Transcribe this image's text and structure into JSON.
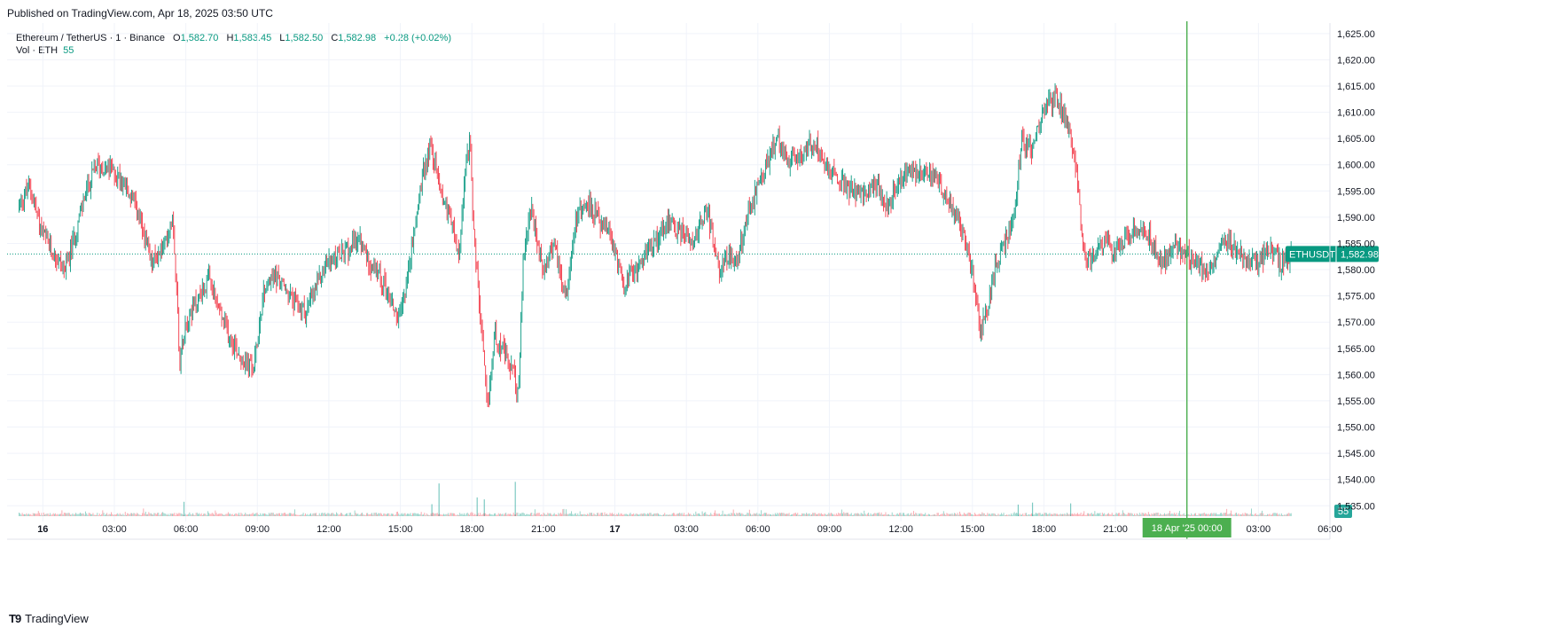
{
  "header": {
    "published": "Published on TradingView.com, Apr 18, 2025 03:50 UTC"
  },
  "legend": {
    "symbol": "Ethereum / TetherUS · 1 · Binance",
    "open_label": "O",
    "open": "1,582.70",
    "high_label": "H",
    "high": "1,583.45",
    "low_label": "L",
    "low": "1,582.50",
    "close_label": "C",
    "close": "1,582.98",
    "change": "+0.28 (+0.02%)"
  },
  "volume_legend": {
    "label": "Vol · ETH",
    "value": "55"
  },
  "price_label": {
    "ticker": "ETHUSDT",
    "value": "1,582.98"
  },
  "volume_badge": "55",
  "crosshair_label": {
    "date": "18 Apr '25",
    "time": "00:00"
  },
  "footer": {
    "brand": "TradingView",
    "logo_icon": "tradingview-logo-icon"
  },
  "colors": {
    "up": "#089981",
    "down": "#F23645",
    "crosshair": "#4CAF50",
    "grid": "#F0F3FA"
  },
  "chart_data": {
    "type": "candlestick",
    "symbol": "ETHUSDT",
    "interval": "1 minute",
    "x_ticks": [
      "16",
      "03:00",
      "06:00",
      "09:00",
      "12:00",
      "15:00",
      "18:00",
      "21:00",
      "17",
      "03:00",
      "06:00",
      "09:00",
      "12:00",
      "15:00",
      "18:00",
      "21:00",
      "18 Apr '25  00:00",
      "03:00",
      "06:00"
    ],
    "x_range_hours": [
      -1.5,
      54.0
    ],
    "y_ticks": [
      "1,535.00",
      "1,540.00",
      "1,545.00",
      "1,550.00",
      "1,555.00",
      "1,560.00",
      "1,565.00",
      "1,570.00",
      "1,575.00",
      "1,580.00",
      "1,585.00",
      "1,590.00",
      "1,595.00",
      "1,600.00",
      "1,605.00",
      "1,610.00",
      "1,615.00",
      "1,620.00",
      "1,625.00"
    ],
    "ylim": [
      1532,
      1627
    ],
    "last_close": 1582.98,
    "crosshair_hour": 48,
    "price_path": [
      [
        -1.0,
        1592
      ],
      [
        -0.5,
        1596
      ],
      [
        0.0,
        1587
      ],
      [
        0.5,
        1583
      ],
      [
        1.0,
        1580
      ],
      [
        1.3,
        1585
      ],
      [
        1.8,
        1594
      ],
      [
        2.3,
        1600
      ],
      [
        2.9,
        1599
      ],
      [
        3.4,
        1597
      ],
      [
        4.0,
        1591
      ],
      [
        4.6,
        1581
      ],
      [
        5.2,
        1585
      ],
      [
        5.5,
        1591
      ],
      [
        5.8,
        1562
      ],
      [
        6.0,
        1570
      ],
      [
        6.5,
        1574
      ],
      [
        7.0,
        1578
      ],
      [
        7.7,
        1569
      ],
      [
        8.4,
        1563
      ],
      [
        8.9,
        1561
      ],
      [
        9.3,
        1576
      ],
      [
        9.8,
        1579
      ],
      [
        10.5,
        1574
      ],
      [
        11.1,
        1572
      ],
      [
        11.9,
        1581
      ],
      [
        12.7,
        1583
      ],
      [
        13.3,
        1586
      ],
      [
        13.8,
        1581
      ],
      [
        14.4,
        1577
      ],
      [
        15.0,
        1570
      ],
      [
        15.5,
        1583
      ],
      [
        15.9,
        1596
      ],
      [
        16.3,
        1604
      ],
      [
        16.8,
        1594
      ],
      [
        17.1,
        1591
      ],
      [
        17.5,
        1582
      ],
      [
        17.8,
        1600
      ],
      [
        18.0,
        1605
      ],
      [
        18.1,
        1588
      ],
      [
        18.4,
        1571
      ],
      [
        18.7,
        1553
      ],
      [
        19.0,
        1568
      ],
      [
        19.4,
        1564
      ],
      [
        19.8,
        1560
      ],
      [
        20.0,
        1556
      ],
      [
        20.2,
        1582
      ],
      [
        20.5,
        1592
      ],
      [
        21.0,
        1580
      ],
      [
        21.5,
        1585
      ],
      [
        22.0,
        1575
      ],
      [
        22.4,
        1590
      ],
      [
        22.9,
        1593
      ],
      [
        23.4,
        1589
      ],
      [
        23.9,
        1586
      ],
      [
        24.4,
        1577
      ],
      [
        24.9,
        1580
      ],
      [
        25.5,
        1584
      ],
      [
        26.2,
        1589
      ],
      [
        26.8,
        1587
      ],
      [
        27.4,
        1586
      ],
      [
        27.9,
        1592
      ],
      [
        28.4,
        1580
      ],
      [
        28.8,
        1583
      ],
      [
        29.1,
        1581
      ],
      [
        29.6,
        1590
      ],
      [
        30.0,
        1595
      ],
      [
        30.4,
        1600
      ],
      [
        30.9,
        1605
      ],
      [
        31.4,
        1600
      ],
      [
        32.0,
        1603
      ],
      [
        32.5,
        1604
      ],
      [
        33.0,
        1599
      ],
      [
        33.5,
        1597
      ],
      [
        34.0,
        1595
      ],
      [
        34.5,
        1594
      ],
      [
        35.0,
        1596
      ],
      [
        35.5,
        1592
      ],
      [
        36.0,
        1597
      ],
      [
        36.5,
        1599
      ],
      [
        37.0,
        1599
      ],
      [
        37.5,
        1597
      ],
      [
        38.0,
        1594
      ],
      [
        38.5,
        1589
      ],
      [
        38.8,
        1585
      ],
      [
        39.1,
        1578
      ],
      [
        39.4,
        1568
      ],
      [
        39.7,
        1573
      ],
      [
        40.0,
        1581
      ],
      [
        40.4,
        1585
      ],
      [
        40.8,
        1590
      ],
      [
        41.1,
        1605
      ],
      [
        41.5,
        1603
      ],
      [
        42.0,
        1610
      ],
      [
        42.5,
        1613
      ],
      [
        43.0,
        1609
      ],
      [
        43.4,
        1600
      ],
      [
        43.7,
        1583
      ],
      [
        44.0,
        1582
      ],
      [
        44.5,
        1585
      ],
      [
        45.0,
        1584
      ],
      [
        45.5,
        1586
      ],
      [
        46.0,
        1588
      ],
      [
        46.5,
        1586
      ],
      [
        47.0,
        1581
      ],
      [
        47.5,
        1585
      ],
      [
        48.0,
        1583
      ],
      [
        48.5,
        1581
      ],
      [
        49.0,
        1580
      ],
      [
        49.5,
        1586
      ],
      [
        50.0,
        1584
      ],
      [
        50.5,
        1582
      ],
      [
        51.0,
        1581
      ],
      [
        51.5,
        1584
      ],
      [
        52.0,
        1581
      ],
      [
        52.4,
        1583
      ]
    ],
    "volume": {
      "spikes": [
        [
          5.9,
          36
        ],
        [
          16.3,
          30
        ],
        [
          16.6,
          82
        ],
        [
          18.2,
          47
        ],
        [
          18.5,
          42
        ],
        [
          19.8,
          86
        ],
        [
          40.9,
          29
        ],
        [
          41.5,
          34
        ],
        [
          43.1,
          32
        ]
      ],
      "scale_max": 120,
      "last": 55
    }
  }
}
